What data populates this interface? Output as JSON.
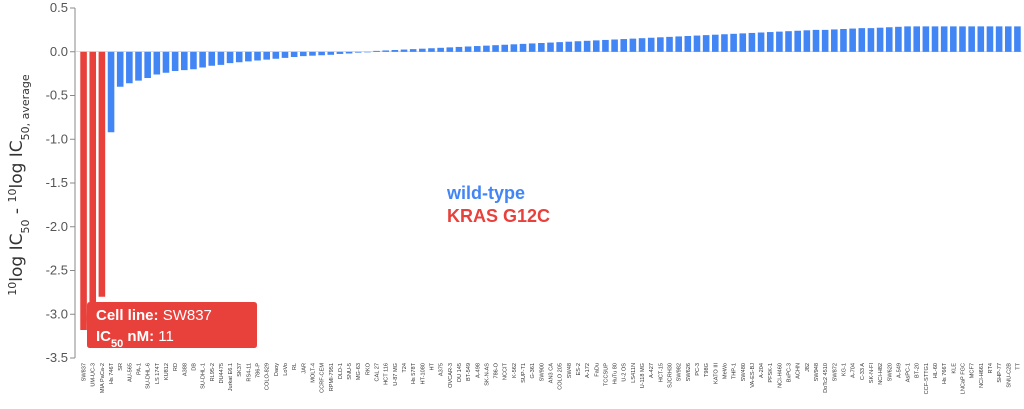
{
  "chart_data": {
    "type": "bar",
    "ylabel": {
      "pre_sup": "10",
      "log1": "log IC",
      "sub1": "50",
      "minus": " - ",
      "pre_sup2": "10",
      "log2": "log IC",
      "sub2": "50, average"
    },
    "ylim": [
      -3.5,
      0.5
    ],
    "yticks": [
      0.5,
      0.0,
      -0.5,
      -1.0,
      -1.5,
      -2.0,
      -2.5,
      -3.0,
      -3.5
    ],
    "grid": false,
    "legend": {
      "placement": "center",
      "items": [
        {
          "label": "wild-type",
          "color": "#4285f4"
        },
        {
          "label": "KRAS G12C",
          "color": "#e8413c"
        }
      ]
    },
    "colors": {
      "wild-type": "#4285f4",
      "KRAS G12C": "#e8413c"
    },
    "categories": [
      "SW837",
      "UM-UC-3",
      "MIA PaCa-2",
      "Hs 746T",
      "SR",
      "AU-565",
      "PA-1",
      "SU-DHL-6",
      "LS 174T",
      "KU812",
      "RD",
      "A388",
      "DB",
      "SU-DHL-1",
      "RL95-2",
      "DU4475",
      "Jurkat E6.1",
      "SK37",
      "RS4-11",
      "786-P",
      "COLO-829",
      "Daoy",
      "LoVo",
      "RL",
      "JAR",
      "MOLT-4",
      "CCRF-CEM",
      "RPMI-7951",
      "DLD-1",
      "SNU-5",
      "MG-63",
      "RKO",
      "CAL 27",
      "HCT 116",
      "U-87 MG",
      "T24",
      "Hs 578T",
      "HT-1080",
      "HT",
      "A375",
      "OVCAR-3",
      "DU 145",
      "BT-549",
      "A-498",
      "SK-N-AS",
      "786-O",
      "NCCIT",
      "K-562",
      "SUP-T1",
      "G-361",
      "SW900",
      "AN3 CA",
      "COLO 205",
      "SW48",
      "ES-2",
      "A-172",
      "FaDu",
      "TCCSUP",
      "HuTu 80",
      "U-2 OS",
      "LS411N",
      "U-118 MG",
      "A-427",
      "HCT-15",
      "SJCRH30",
      "SW982",
      "SW626",
      "PC-3",
      "T98G",
      "KATO III",
      "MeWo",
      "THP-1",
      "SW480",
      "VA-ES-BJ",
      "A-204",
      "PFSK-1",
      "NCI-H460",
      "BxPC-3",
      "ACHN",
      "J82",
      "SW948",
      "DoTc2 4510",
      "SW872",
      "KG-1",
      "A-704",
      "C-33 A",
      "SK-N-FI",
      "NCI-H82",
      "SW620",
      "A-549",
      "AsPC-1",
      "BT-20",
      "CCF-STTG1",
      "HL-60",
      "Hs 766T",
      "KLE",
      "LNCaP FGC",
      "MCF7",
      "NCI-H661",
      "RT4",
      "SHP-77",
      "SNU-C2B",
      "TT"
    ],
    "series": [
      {
        "name": "wild-type",
        "values": [
          null,
          null,
          null,
          -0.92,
          -0.4,
          -0.36,
          -0.33,
          -0.3,
          -0.26,
          -0.24,
          -0.22,
          -0.21,
          -0.2,
          -0.18,
          -0.16,
          -0.15,
          -0.13,
          -0.12,
          -0.11,
          -0.1,
          -0.09,
          -0.08,
          -0.07,
          -0.06,
          -0.05,
          -0.045,
          -0.04,
          -0.035,
          -0.025,
          -0.02,
          -0.01,
          -0.005,
          0.01,
          0.015,
          0.02,
          0.025,
          0.03,
          0.035,
          0.04,
          0.045,
          0.05,
          0.055,
          0.06,
          0.065,
          0.07,
          0.075,
          0.08,
          0.085,
          0.09,
          0.095,
          0.1,
          0.105,
          0.11,
          0.115,
          0.12,
          0.125,
          0.13,
          0.135,
          0.14,
          0.145,
          0.15,
          0.155,
          0.16,
          0.165,
          0.17,
          0.175,
          0.18,
          0.185,
          0.19,
          0.195,
          0.2,
          0.205,
          0.21,
          0.215,
          0.22,
          0.225,
          0.23,
          0.235,
          0.24,
          0.245,
          0.25,
          0.25,
          0.255,
          0.26,
          0.265,
          0.27,
          0.27,
          0.275,
          0.28,
          0.285,
          0.29,
          0.29,
          0.29,
          0.29,
          0.29,
          0.29,
          0.29,
          0.29,
          0.29,
          0.29,
          0.29,
          0.29,
          0.29
        ]
      },
      {
        "name": "KRAS G12C",
        "values": [
          -3.18,
          -3.0,
          -2.8,
          null,
          null,
          null,
          null,
          null,
          null,
          null,
          null,
          null,
          null,
          null,
          null,
          null,
          null,
          null,
          null,
          null,
          null,
          null,
          null,
          null,
          null,
          null,
          null,
          null,
          null,
          null,
          null,
          null,
          null,
          null,
          null,
          null,
          null,
          null,
          null,
          null,
          null,
          null,
          null,
          null,
          null,
          null,
          null,
          null,
          null,
          null,
          null,
          null,
          null,
          null,
          null,
          null,
          null,
          null,
          null,
          null,
          null,
          null,
          null,
          null,
          null,
          null,
          null,
          null,
          null,
          null,
          null,
          null,
          null,
          null,
          null,
          null,
          null,
          null,
          null,
          null,
          null,
          null,
          null,
          null,
          null,
          null,
          null,
          null,
          null,
          null,
          null,
          null,
          null,
          null,
          null,
          null,
          null,
          null,
          null,
          null,
          null,
          null,
          null
        ]
      }
    ],
    "tooltip": {
      "line_label": "Cell line:",
      "line_value": "SW837",
      "ic_label_main": "IC",
      "ic_label_sub": "50",
      "ic_label_tail": " nM:",
      "ic_value": "11",
      "target_index": 0
    }
  }
}
